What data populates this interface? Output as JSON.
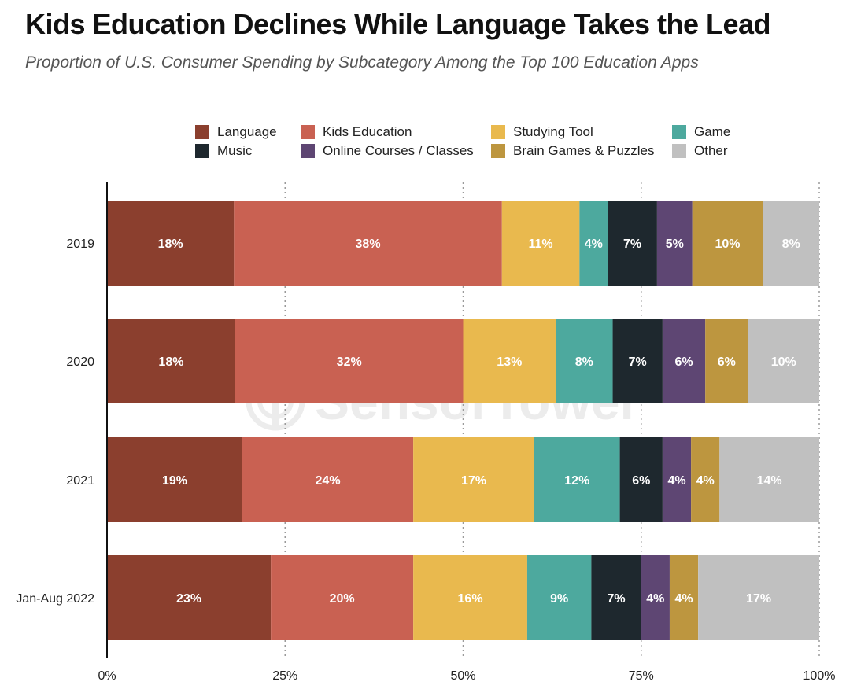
{
  "title": "Kids Education Declines While Language Takes the Lead",
  "subtitle": "Proportion of U.S. Consumer Spending by Subcategory Among the Top 100 Education Apps",
  "watermark": {
    "text": "SensorTower",
    "icon": "sensor-tower-logo-icon"
  },
  "chart_data": {
    "type": "bar",
    "orientation": "horizontal",
    "stacked": true,
    "categories": [
      "2019",
      "2020",
      "2021",
      "Jan-Aug 2022"
    ],
    "series": [
      {
        "name": "Language",
        "color": "#8B3F2E",
        "values": [
          18,
          18,
          19,
          23
        ]
      },
      {
        "name": "Kids Education",
        "color": "#C96152",
        "values": [
          38,
          32,
          24,
          20
        ]
      },
      {
        "name": "Studying Tool",
        "color": "#E9B94E",
        "values": [
          11,
          13,
          17,
          16
        ]
      },
      {
        "name": "Game",
        "color": "#4DA99E",
        "values": [
          4,
          8,
          12,
          9
        ]
      },
      {
        "name": "Music",
        "color": "#1E282E",
        "values": [
          7,
          7,
          6,
          7
        ]
      },
      {
        "name": "Online Courses / Classes",
        "color": "#5E4673",
        "values": [
          5,
          6,
          4,
          4
        ]
      },
      {
        "name": "Brain Games & Puzzles",
        "color": "#BD963F",
        "values": [
          10,
          6,
          4,
          4
        ]
      },
      {
        "name": "Other",
        "color": "#C0C0C0",
        "values": [
          8,
          10,
          14,
          17
        ]
      }
    ],
    "data_labels": [
      [
        "18%",
        "18%",
        "19%",
        "23%"
      ],
      [
        "38%",
        "32%",
        "24%",
        "20%"
      ],
      [
        "11%",
        "13%",
        "17%",
        "16%"
      ],
      [
        "4%",
        "8%",
        "12%",
        "9%"
      ],
      [
        "7%",
        "7%",
        "6%",
        "7%"
      ],
      [
        "5%",
        "6%",
        "4%",
        "4%"
      ],
      [
        "10%",
        "6%",
        "4%",
        "4%"
      ],
      [
        "8%",
        "10%",
        "14%",
        "17%"
      ]
    ],
    "xlim": [
      0,
      100
    ],
    "xticks": [
      0,
      25,
      50,
      75,
      100
    ],
    "xtick_labels": [
      "0%",
      "25%",
      "50%",
      "75%",
      "100%"
    ],
    "grid": "vertical dotted",
    "legend_position": "top"
  }
}
